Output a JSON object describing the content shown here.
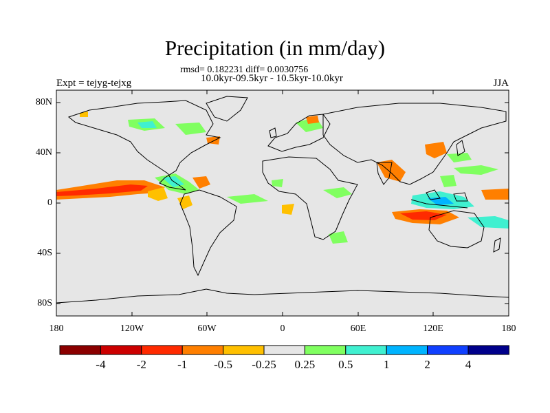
{
  "title": "Precipitation (in mm/day)",
  "stats_line": "rmsd= 0.182231 diff= 0.0030756",
  "period_line": "10.0kyr-09.5kyr - 10.5kyr-10.0kyr",
  "experiment_label": "Expt = tejyg-tejxg",
  "season_label": "JJA",
  "lat_ticks": [
    "80N",
    "40N",
    "0",
    "40S",
    "80S"
  ],
  "lon_ticks": [
    "180",
    "120W",
    "60W",
    "0",
    "60E",
    "120E",
    "180"
  ],
  "colorbar": {
    "labels": [
      "-4",
      "-2",
      "-1",
      "-0.5",
      "-0.25",
      "0.25",
      "0.5",
      "1",
      "2",
      "4"
    ],
    "colors": [
      "#8b0000",
      "#cc0000",
      "#ff2a00",
      "#ff7f00",
      "#ffc000",
      "#e6e6e6",
      "#80ff60",
      "#40f0d0",
      "#00b4ff",
      "#1040ff",
      "#00008b"
    ]
  },
  "colors": {
    "background": "#e6e6e6",
    "frame": "#000000"
  }
}
